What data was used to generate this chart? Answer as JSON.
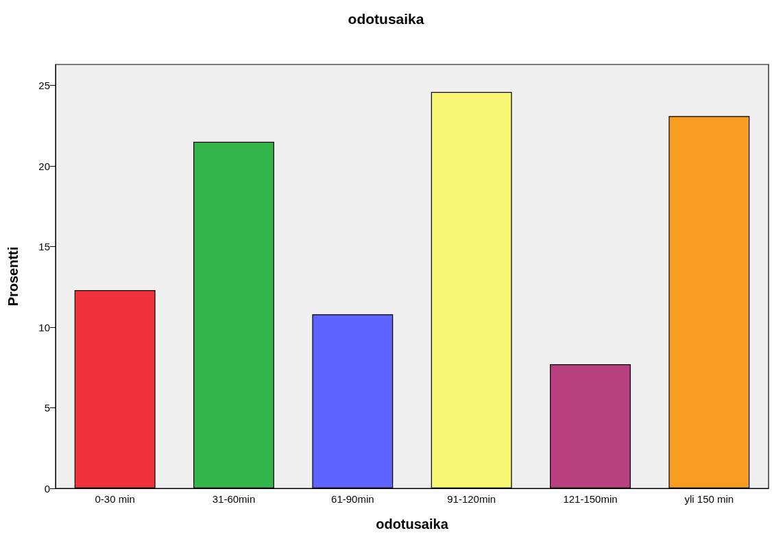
{
  "chart_data": {
    "type": "bar",
    "title": "odotusaika",
    "xlabel": "odotusaika",
    "ylabel": "Prosentti",
    "categories": [
      "0-30 min",
      "31-60min",
      "61-90min",
      "91-120min",
      "121-150min",
      "yli 150 min"
    ],
    "values": [
      12.3,
      21.5,
      10.8,
      24.6,
      7.7,
      23.1
    ],
    "colors": [
      "#f0333a",
      "#33b74a",
      "#5f63ff",
      "#f9f674",
      "#b94080",
      "#f99d22"
    ],
    "ylim": [
      0,
      26.3
    ],
    "yticks": [
      0,
      5,
      10,
      15,
      20,
      25
    ],
    "grid": false
  }
}
